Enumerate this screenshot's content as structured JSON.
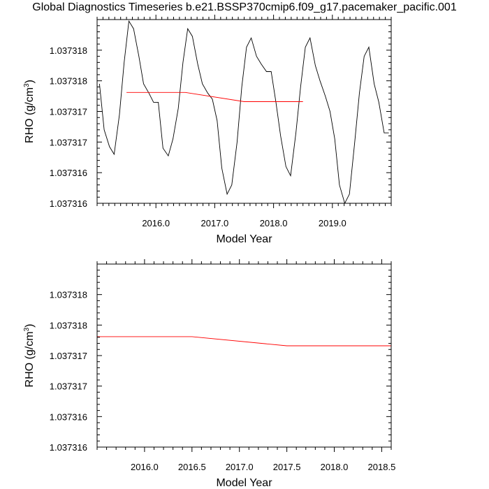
{
  "title": "Global Diagnostics Timeseries b.e21.BSSP370cmip6.f09_g17.pacemaker_pacific.001",
  "chart_data": [
    {
      "type": "line",
      "xlabel": "Model Year",
      "ylabel": "RHO (g/cm",
      "ylabel_sup": "3",
      "ylabel_close": ")",
      "xlim": [
        2015.0,
        2020.0
      ],
      "ylim": [
        0,
        6
      ],
      "x_ticks": [
        2016.0,
        2017.0,
        2018.0,
        2019.0
      ],
      "x_tick_labels": [
        "2016.0",
        "2017.0",
        "2018.0",
        "2019.0"
      ],
      "y_ticks": [
        0,
        1,
        2,
        3,
        4,
        5
      ],
      "y_tick_labels": [
        "1.037316",
        "1.037316",
        "1.037317",
        "1.037317",
        "1.037318",
        "1.037318"
      ],
      "series": [
        {
          "color": "#000000",
          "x": [
            2015.04,
            2015.12,
            2015.21,
            2015.29,
            2015.38,
            2015.46,
            2015.54,
            2015.62,
            2015.71,
            2015.79,
            2015.88,
            2015.96,
            2016.04,
            2016.12,
            2016.21,
            2016.29,
            2016.38,
            2016.46,
            2016.54,
            2016.62,
            2016.71,
            2016.79,
            2016.88,
            2016.96,
            2017.04,
            2017.12,
            2017.21,
            2017.29,
            2017.38,
            2017.46,
            2017.54,
            2017.62,
            2017.71,
            2017.79,
            2017.88,
            2017.96,
            2018.04,
            2018.12,
            2018.21,
            2018.29,
            2018.38,
            2018.46,
            2018.54,
            2018.62,
            2018.71,
            2018.79,
            2018.88,
            2018.96,
            2019.04,
            2019.12,
            2019.21,
            2019.29,
            2019.38,
            2019.46,
            2019.54,
            2019.62,
            2019.71,
            2019.79,
            2019.88,
            2019.96
          ],
          "y": [
            3.9,
            2.4,
            1.85,
            1.6,
            2.9,
            4.6,
            5.95,
            5.7,
            4.8,
            3.9,
            3.6,
            3.3,
            3.3,
            1.8,
            1.55,
            2.1,
            3.1,
            4.6,
            5.7,
            5.45,
            4.55,
            3.9,
            3.6,
            3.4,
            2.7,
            1.15,
            0.3,
            0.6,
            2.0,
            3.8,
            5.1,
            5.4,
            4.8,
            4.55,
            4.3,
            4.3,
            3.3,
            2.2,
            1.2,
            0.9,
            2.3,
            3.8,
            5.1,
            5.4,
            4.5,
            4.0,
            3.5,
            3.0,
            2.1,
            0.6,
            0.0,
            0.3,
            2.0,
            3.6,
            4.8,
            5.1,
            3.9,
            3.3,
            2.3,
            2.3
          ]
        },
        {
          "color": "#ff0000",
          "x": [
            2015.5,
            2016.5,
            2017.5,
            2018.5
          ],
          "y": [
            3.62,
            3.62,
            3.32,
            3.32
          ]
        }
      ]
    },
    {
      "type": "line",
      "xlabel": "Model Year",
      "ylabel": "RHO (g/cm",
      "ylabel_sup": "3",
      "ylabel_close": ")",
      "xlim": [
        2015.5,
        2018.6
      ],
      "ylim": [
        0,
        6
      ],
      "x_ticks": [
        2016.0,
        2016.5,
        2017.0,
        2017.5,
        2018.0,
        2018.5
      ],
      "x_tick_labels": [
        "2016.0",
        "2016.5",
        "2017.0",
        "2017.5",
        "2018.0",
        "2018.5"
      ],
      "y_ticks": [
        0,
        1,
        2,
        3,
        4,
        5
      ],
      "y_tick_labels": [
        "1.037316",
        "1.037316",
        "1.037317",
        "1.037317",
        "1.037318",
        "1.037318"
      ],
      "series": [
        {
          "color": "#ff0000",
          "x": [
            2015.5,
            2016.5,
            2017.5,
            2018.6
          ],
          "y": [
            3.62,
            3.62,
            3.32,
            3.32
          ]
        }
      ]
    }
  ]
}
